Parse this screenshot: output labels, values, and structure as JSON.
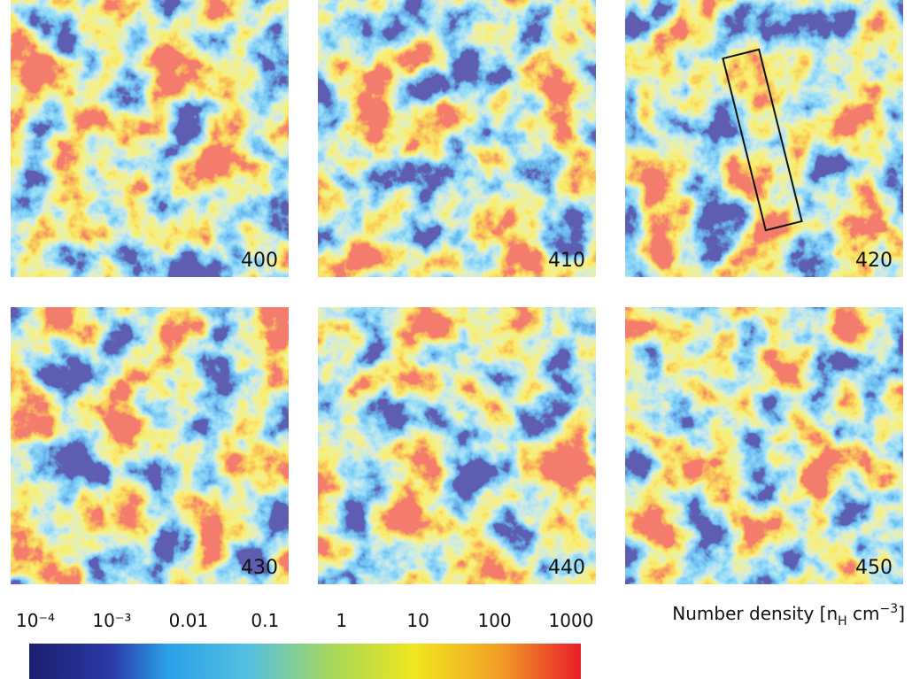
{
  "panels": [
    {
      "label": "400"
    },
    {
      "label": "410"
    },
    {
      "label": "420"
    },
    {
      "label": "430"
    },
    {
      "label": "440"
    },
    {
      "label": "450"
    }
  ],
  "colorbar": {
    "scale": "log",
    "lim": [
      0.0001,
      1000
    ],
    "ticks": [
      {
        "value": 0.0001,
        "label": "10⁻⁴"
      },
      {
        "value": 0.001,
        "label": "10⁻³"
      },
      0.01,
      0.1,
      1,
      10,
      100,
      1000
    ],
    "label": {
      "text": "Number density [n",
      "sub": "H",
      "mid": " cm",
      "sup": "−3",
      "end": "]"
    }
  }
}
